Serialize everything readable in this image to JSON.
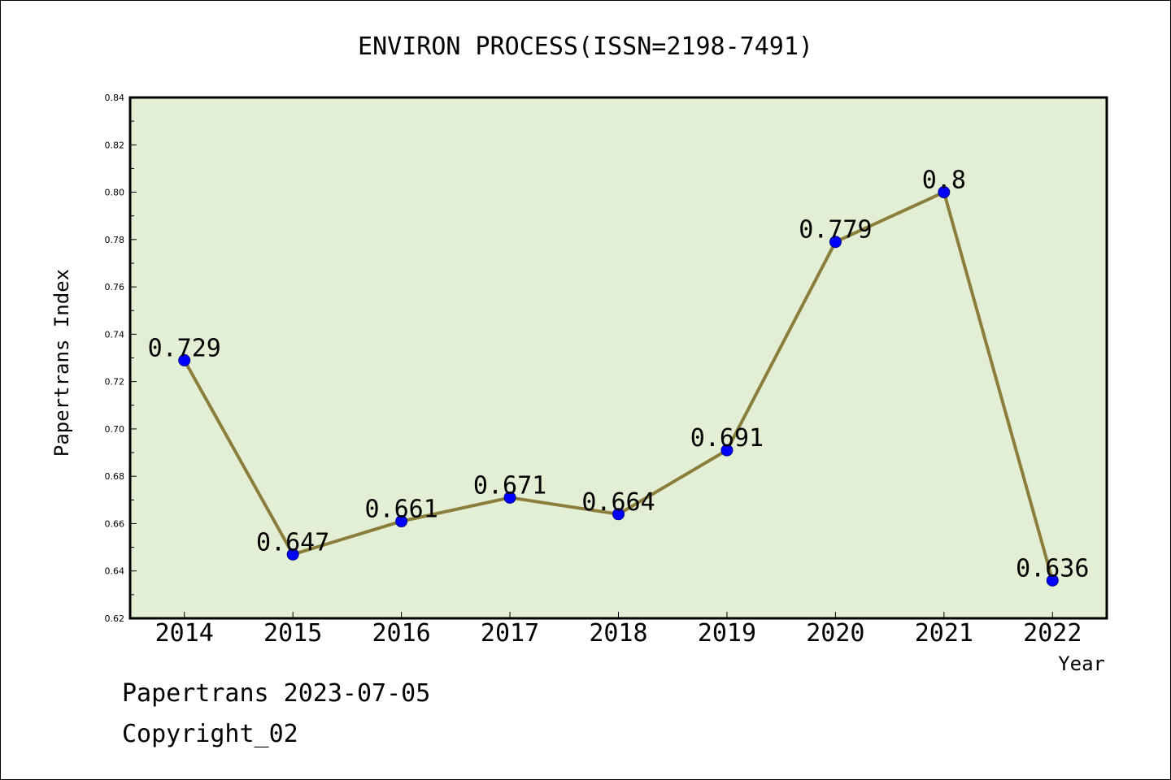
{
  "chart_data": {
    "type": "line",
    "title": "ENVIRON PROCESS(ISSN=2198-7491)",
    "xlabel": "Year",
    "ylabel": "Papertrans Index",
    "categories": [
      "2014",
      "2015",
      "2016",
      "2017",
      "2018",
      "2019",
      "2020",
      "2021",
      "2022"
    ],
    "series": [
      {
        "values": [
          0.729,
          0.647,
          0.661,
          0.671,
          0.664,
          0.691,
          0.779,
          0.8,
          0.636
        ],
        "data_labels": [
          "0.729",
          "0.647",
          "0.661",
          "0.671",
          "0.664",
          "0.691",
          "0.779",
          "0.8",
          "0.636"
        ]
      }
    ],
    "ylim": [
      0.62,
      0.84
    ],
    "yticks": [
      "0.62",
      "0.64",
      "0.66",
      "0.68",
      "0.70",
      "0.72",
      "0.74",
      "0.76",
      "0.78",
      "0.80",
      "0.82",
      "0.84"
    ],
    "grid": false,
    "legend": "none",
    "colors": {
      "plot_background": "#e2efd5",
      "line": "#8b7d3a",
      "marker": "#0000ff"
    }
  },
  "footer": {
    "line1": "Papertrans 2023-07-05",
    "line2": "Copyright_02"
  }
}
